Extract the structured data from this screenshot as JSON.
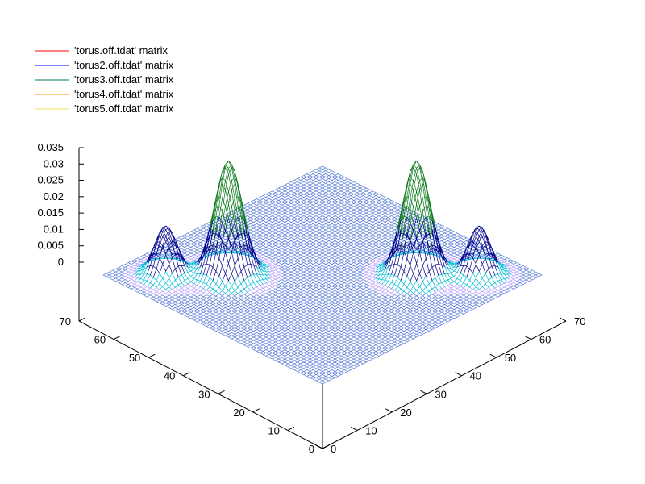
{
  "chart_data": {
    "type": "surface3d",
    "title": "",
    "legend_position": "top-left",
    "grid": false,
    "x_axis": {
      "label": "",
      "range": [
        0,
        70
      ],
      "ticks": [
        0,
        10,
        20,
        30,
        40,
        50,
        60,
        70
      ]
    },
    "y_axis": {
      "label": "",
      "range": [
        0,
        70
      ],
      "ticks": [
        0,
        10,
        20,
        30,
        40,
        50,
        60,
        70
      ]
    },
    "z_axis": {
      "label": "",
      "range": [
        0,
        0.035
      ],
      "ticks": [
        "0",
        "0.005",
        "0.01",
        "0.015",
        "0.02",
        "0.025",
        "0.03",
        "0.035"
      ]
    },
    "series": [
      {
        "name": "'torus.off.tdat' matrix",
        "color": "#ff0000"
      },
      {
        "name": "'torus2.off.tdat' matrix",
        "color": "#0000ff"
      },
      {
        "name": "'torus3.off.tdat' matrix",
        "color": "#008040"
      },
      {
        "name": "'torus4.off.tdat' matrix",
        "color": "#ff9900"
      },
      {
        "name": "'torus5.off.tdat' matrix",
        "color": "#f0e060"
      }
    ],
    "peaks": [
      {
        "x": 20,
        "y": 50,
        "z": 0.035
      },
      {
        "x": 50,
        "y": 20,
        "z": 0.035
      },
      {
        "x": 10,
        "y": 60,
        "z": 0.015
      },
      {
        "x": 60,
        "y": 10,
        "z": 0.015
      }
    ]
  }
}
